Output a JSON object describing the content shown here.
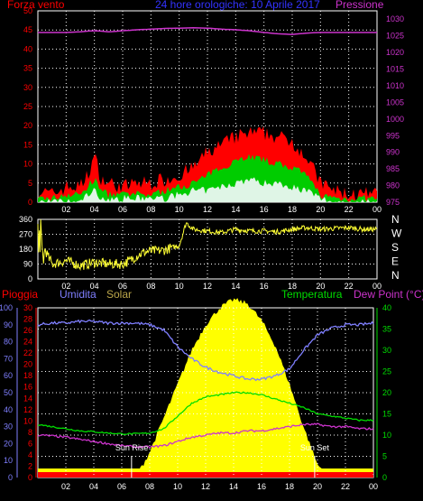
{
  "colors": {
    "background": "#000000",
    "grid": "#ffffff",
    "wind_gust": "#ff0000",
    "wind_avg": "#00cc00",
    "wind_min": "#dff5e6",
    "pressure": "#cc33cc",
    "direction": "#ffff33",
    "rain": "#ff0000",
    "humidity": "#7f7fff",
    "solar": "#ffff00",
    "temperature": "#00dd00",
    "dew_point": "#cc33cc"
  },
  "chart_data": [
    {
      "type": "area",
      "title": "24 hore orologiche: 10 Aprile 2017",
      "ylabel_left": "Forza vento",
      "ylabel_right": "Pressione",
      "y_left_ticks": [
        "0",
        "5",
        "10",
        "15",
        "20",
        "25",
        "30",
        "35",
        "40",
        "45",
        "50"
      ],
      "y_right_ticks": [
        "975",
        "980",
        "985",
        "990",
        "995",
        "1000",
        "1005",
        "1010",
        "1015",
        "1020",
        "1025",
        "1030"
      ],
      "ylim_left": [
        0,
        50
      ],
      "ylim_right": [
        975,
        1032.5
      ],
      "x_ticks": [
        "02",
        "04",
        "06",
        "08",
        "10",
        "12",
        "14",
        "16",
        "18",
        "20",
        "22",
        "00"
      ],
      "grid": true,
      "x_hours": [
        0,
        1,
        2,
        3,
        3.5,
        4,
        4.5,
        5,
        6,
        7,
        8,
        9,
        10,
        11,
        12,
        13,
        14,
        15,
        16,
        17,
        18,
        19,
        20,
        21,
        22,
        23,
        24
      ],
      "series": [
        {
          "name": "gust",
          "values": [
            3,
            2,
            4,
            4,
            7,
            12,
            6,
            5,
            4,
            5,
            5,
            6,
            7,
            9,
            13,
            15,
            17,
            18,
            18,
            17,
            16,
            12,
            5,
            3,
            2,
            2,
            2
          ]
        },
        {
          "name": "average",
          "values": [
            1,
            1,
            2,
            2,
            4,
            6,
            3,
            2,
            2,
            2,
            2,
            3,
            4,
            5,
            7,
            9,
            11,
            12,
            11,
            10,
            9,
            7,
            2,
            1,
            1,
            1,
            1
          ]
        },
        {
          "name": "min",
          "values": [
            0,
            0,
            0,
            0,
            2,
            3,
            1,
            1,
            1,
            1,
            1,
            1,
            2,
            3,
            3,
            4,
            5,
            6,
            5,
            5,
            4,
            3,
            1,
            0,
            0,
            0,
            0
          ]
        },
        {
          "name": "pressure",
          "values": [
            1026,
            1026,
            1026,
            1026.2,
            1026.4,
            1026.5,
            1026.4,
            1026.2,
            1026.5,
            1026.8,
            1027,
            1027.2,
            1027.3,
            1027.4,
            1027.3,
            1027,
            1026.8,
            1026.5,
            1026,
            1025.6,
            1025.4,
            1025.8,
            1026,
            1026,
            1026,
            1026,
            1026
          ]
        }
      ]
    },
    {
      "type": "line",
      "ylabel_right": [
        "N",
        "W",
        "S",
        "E",
        "N"
      ],
      "y_left_ticks": [
        "0",
        "90",
        "180",
        "270",
        "360"
      ],
      "ylim": [
        0,
        360
      ],
      "x_ticks": [
        "02",
        "04",
        "06",
        "08",
        "10",
        "12",
        "14",
        "16",
        "18",
        "20",
        "22",
        "00"
      ],
      "grid": true,
      "series": [
        {
          "name": "direction",
          "x": [
            0,
            0.05,
            0.1,
            0.15,
            0.2,
            0.3,
            0.4,
            0.5,
            0.8,
            0.9,
            1,
            2,
            3,
            4,
            5,
            6,
            6.5,
            7,
            7.5,
            8,
            8.5,
            9,
            9.5,
            10,
            10.5,
            11,
            12,
            13,
            14,
            15,
            16,
            17,
            18,
            19,
            20,
            21,
            22,
            23,
            24
          ],
          "values": [
            320,
            150,
            320,
            150,
            330,
            180,
            110,
            180,
            120,
            110,
            90,
            110,
            80,
            100,
            90,
            90,
            110,
            140,
            160,
            170,
            170,
            175,
            190,
            200,
            340,
            300,
            290,
            280,
            300,
            290,
            290,
            285,
            300,
            310,
            300,
            305,
            310,
            300,
            300
          ]
        }
      ]
    },
    {
      "type": "line",
      "y_left_ticks": [
        "0",
        "10",
        "20",
        "30",
        "40",
        "50",
        "60",
        "70",
        "80",
        "90",
        "100"
      ],
      "y_left2_ticks": [
        "0",
        "2",
        "4",
        "6",
        "8",
        "10",
        "12",
        "14",
        "16",
        "18",
        "20",
        "22",
        "24",
        "26",
        "28",
        "30"
      ],
      "y_right_ticks": [
        "0",
        "5",
        "10",
        "15",
        "20",
        "25",
        "30",
        "35",
        "40"
      ],
      "ylim_humidity": [
        0,
        100
      ],
      "ylim_temperature": [
        0,
        40
      ],
      "x_ticks": [
        "02",
        "04",
        "06",
        "08",
        "10",
        "12",
        "14",
        "16",
        "18",
        "20",
        "22",
        "00"
      ],
      "grid": true,
      "annotations": [
        "Sun Rise",
        "Sun Set"
      ],
      "sunrise_hour": 6.7,
      "sunset_hour": 19.8,
      "x_hours": [
        0,
        1,
        2,
        3,
        4,
        5,
        6,
        7,
        8,
        9,
        10,
        11,
        12,
        13,
        14,
        15,
        16,
        17,
        18,
        19,
        20,
        21,
        22,
        23,
        24
      ],
      "series": [
        {
          "name": "Pioggia",
          "values": [
            0,
            0,
            0,
            0,
            0,
            0,
            0,
            0,
            0,
            0,
            0,
            0,
            0,
            0,
            0,
            0,
            0,
            0,
            0,
            0,
            0,
            0,
            0,
            0,
            0
          ]
        },
        {
          "name": "Umidita",
          "values": [
            90,
            91,
            91,
            92,
            92,
            91,
            91,
            91,
            90,
            87,
            77,
            70,
            65,
            62,
            60,
            58,
            58,
            60,
            64,
            75,
            84,
            88,
            90,
            90,
            91
          ]
        },
        {
          "name": "Solar",
          "values": [
            0,
            0,
            0,
            0,
            0,
            0,
            0,
            0,
            6,
            14,
            22,
            30,
            36,
            40,
            42,
            41,
            37,
            31,
            22,
            12,
            3,
            0,
            0,
            0,
            0
          ]
        },
        {
          "name": "Temperatura",
          "values": [
            12.5,
            12,
            11.5,
            11,
            10.8,
            10.5,
            10.3,
            10.3,
            10.5,
            11.5,
            14.5,
            17.5,
            19,
            19.5,
            20,
            20,
            19.5,
            18.5,
            17.5,
            16.5,
            15,
            14.5,
            14,
            13.5,
            13.5
          ]
        },
        {
          "name": "Dew Point",
          "values": [
            10,
            9.8,
            9.5,
            9,
            8.5,
            8,
            7.5,
            7.2,
            7.2,
            7.5,
            8.5,
            9.5,
            10,
            10.5,
            10.5,
            11,
            11,
            11.5,
            12,
            12.5,
            12.5,
            12,
            12,
            11.5,
            11.5
          ]
        }
      ]
    }
  ],
  "labels": {
    "wind_title": "Forza vento",
    "date_title": "24 hore orologiche: 10 Aprile 2017",
    "pressure_title": "Pressione",
    "pioggia": "Pioggia",
    "umidita": "Umidita",
    "solar": "Solar",
    "temperatura": "Temperatura",
    "dew_point": "Dew Point (°C)",
    "sun_rise": "Sun Rise",
    "sun_set": "Sun Set"
  }
}
